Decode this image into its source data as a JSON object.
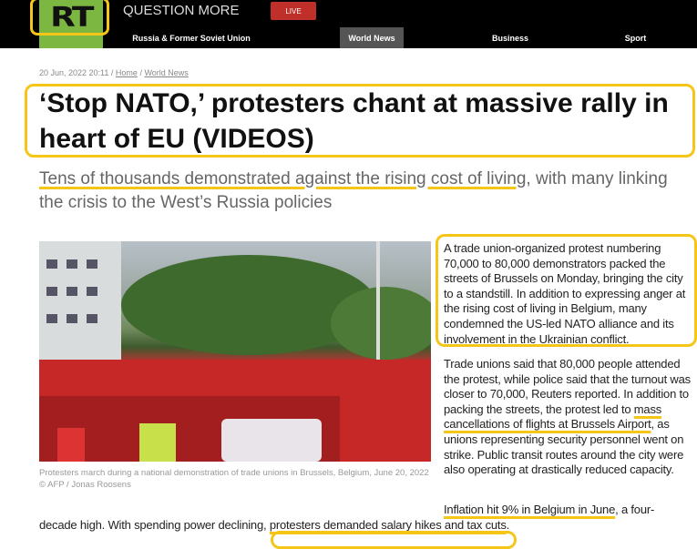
{
  "header": {
    "logo": "RT",
    "tagline": "QUESTION MORE",
    "live_label": "LIVE",
    "nav": [
      {
        "label": "Russia & Former Soviet Union"
      },
      {
        "label": "World News",
        "active": true
      },
      {
        "label": "Business"
      },
      {
        "label": "Sport"
      }
    ]
  },
  "breadcrumb": {
    "date": "20 Jun, 2022 20:11",
    "sep": " / ",
    "home": "Home",
    "section": "World News"
  },
  "article": {
    "title": "‘Stop NATO,’ protesters chant at massive rally in heart of EU (VIDEOS)",
    "subtitle_highlight": "Tens of thousands demonstrated against the rising cost of living",
    "subtitle_rest": ", with many linking the crisis to the West’s Russia policies",
    "caption": "Protesters march during a national demonstration of trade unions in Brussels, Belgium, June 20, 2022 © AFP / Jonas Roosens",
    "p1": "A trade union-organized protest numbering 70,000 to 80,000 demonstrators packed the streets of Brussels on Monday, bringing the city to a standstill. In addition to expressing anger at the rising cost of living in Belgium, many condemned the US-led NATO alliance and its involvement in the Ukrainian conflict.",
    "p2_a": "Trade unions said that 80,000 people attended the protest, while police said that the turnout was closer to 70,000, Reuters reported. In addition to packing the streets, the protest led to ",
    "p2_hl": "mass cancellations of flights at Brussels Airport",
    "p2_b": ", as unions representing security personnel went on strike. Public transit routes around the city were also operating at drastically reduced capacity.",
    "p3_hl": "Inflation hit 9% in Belgium in June",
    "p3_a": ", a four-",
    "p3_b": "decade high. With spending power declining, ",
    "p3_hl2": "protesters demanded salary hikes and tax cuts",
    "p3_c": "."
  },
  "colors": {
    "highlight": "#f5c518",
    "brand_green": "#7cb742",
    "live_red": "#c0302b"
  }
}
